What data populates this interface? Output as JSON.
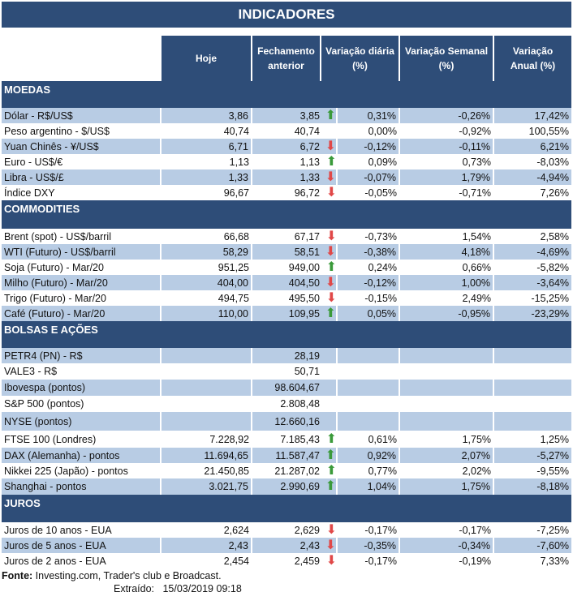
{
  "title": "INDICADORES",
  "headers": {
    "hoje": "Hoje",
    "fech_1": "Fechamento",
    "fech_2": "anterior",
    "diaria_1": "Variação diária",
    "diaria_2": "(%)",
    "semanal_1": "Variação Semanal",
    "semanal_2": "(%)",
    "anual_1": "Variação",
    "anual_2": "Anual (%)"
  },
  "colors": {
    "header_bg": "#2e4d78",
    "stripe": "#b8cce4",
    "up": "#3a9a3a",
    "down": "#e04848"
  },
  "sections": [
    {
      "name": "MOEDAS",
      "rows": [
        {
          "label": "Dólar - R$/US$",
          "hoje": "3,86",
          "fech": "3,85",
          "trend": "up",
          "diaria": "0,31%",
          "semanal": "-0,26%",
          "anual": "17,42%"
        },
        {
          "label": "Peso argentino - $/US$",
          "hoje": "40,74",
          "fech": "40,74",
          "trend": "",
          "diaria": "0,00%",
          "semanal": "-0,92%",
          "anual": "100,55%"
        },
        {
          "label": "Yuan Chinês - ¥/US$",
          "hoje": "6,71",
          "fech": "6,72",
          "trend": "down",
          "diaria": "-0,12%",
          "semanal": "-0,11%",
          "anual": "6,21%"
        },
        {
          "label": "Euro - US$/€",
          "hoje": "1,13",
          "fech": "1,13",
          "trend": "up",
          "diaria": "0,09%",
          "semanal": "0,73%",
          "anual": "-8,03%"
        },
        {
          "label": "Libra - US$/£",
          "hoje": "1,33",
          "fech": "1,33",
          "trend": "down",
          "diaria": "-0,07%",
          "semanal": "1,79%",
          "anual": "-4,94%"
        },
        {
          "label": "Índice DXY",
          "hoje": "96,67",
          "fech": "96,72",
          "trend": "down",
          "diaria": "-0,05%",
          "semanal": "-0,71%",
          "anual": "7,26%"
        }
      ]
    },
    {
      "name": "COMMODITIES",
      "rows": [
        {
          "label": "Brent (spot) - US$/barril",
          "hoje": "66,68",
          "fech": "67,17",
          "trend": "down",
          "diaria": "-0,73%",
          "semanal": "1,54%",
          "anual": "2,58%"
        },
        {
          "label": "WTI (Futuro) - US$/barril",
          "hoje": "58,29",
          "fech": "58,51",
          "trend": "down",
          "diaria": "-0,38%",
          "semanal": "4,18%",
          "anual": "-4,69%"
        },
        {
          "label": "Soja (Futuro) - Mar/20",
          "hoje": "951,25",
          "fech": "949,00",
          "trend": "up",
          "diaria": "0,24%",
          "semanal": "0,66%",
          "anual": "-5,82%"
        },
        {
          "label": "Milho (Futuro) - Mar/20",
          "hoje": "404,00",
          "fech": "404,50",
          "trend": "down",
          "diaria": "-0,12%",
          "semanal": "1,00%",
          "anual": "-3,64%"
        },
        {
          "label": "Trigo (Futuro) - Mar/20",
          "hoje": "494,75",
          "fech": "495,50",
          "trend": "down",
          "diaria": "-0,15%",
          "semanal": "2,49%",
          "anual": "-15,25%"
        },
        {
          "label": "Café (Futuro) - Mar/20",
          "hoje": "110,00",
          "fech": "109,95",
          "trend": "up",
          "diaria": "0,05%",
          "semanal": "-0,95%",
          "anual": "-23,29%"
        }
      ]
    },
    {
      "name": "BOLSAS E AÇÕES",
      "rows": [
        {
          "label": "PETR4 (PN) - R$",
          "hoje": "",
          "fech": "28,19",
          "trend": "",
          "diaria": "",
          "semanal": "",
          "anual": ""
        },
        {
          "label": "VALE3 - R$",
          "hoje": "",
          "fech": "50,71",
          "trend": "",
          "diaria": "",
          "semanal": "",
          "anual": ""
        },
        {
          "label": "Ibovespa (pontos)",
          "hoje": "",
          "fech": "98.604,67",
          "trend": "",
          "diaria": "",
          "semanal": "",
          "anual": ""
        },
        {
          "label": "S&P 500 (pontos)",
          "hoje": "",
          "fech": "2.808,48",
          "trend": "",
          "diaria": "",
          "semanal": "",
          "anual": ""
        },
        {
          "label": "NYSE (pontos)",
          "hoje": "",
          "fech": "12.660,16",
          "trend": "",
          "diaria": "",
          "semanal": "",
          "anual": ""
        },
        {
          "label": "FTSE 100 (Londres)",
          "hoje": "7.228,92",
          "fech": "7.185,43",
          "trend": "up",
          "diaria": "0,61%",
          "semanal": "1,75%",
          "anual": "1,25%"
        },
        {
          "label": "DAX (Alemanha) - pontos",
          "hoje": "11.694,65",
          "fech": "11.587,47",
          "trend": "up",
          "diaria": "0,92%",
          "semanal": "2,07%",
          "anual": "-5,27%"
        },
        {
          "label": "Nikkei 225 (Japão) - pontos",
          "hoje": "21.450,85",
          "fech": "21.287,02",
          "trend": "up",
          "diaria": "0,77%",
          "semanal": "2,02%",
          "anual": "-9,55%"
        },
        {
          "label": "Shanghai - pontos",
          "hoje": "3.021,75",
          "fech": "2.990,69",
          "trend": "up",
          "diaria": "1,04%",
          "semanal": "1,75%",
          "anual": "-8,18%"
        }
      ]
    },
    {
      "name": "JUROS",
      "rows": [
        {
          "label": "Juros de 10 anos - EUA",
          "hoje": "2,624",
          "fech": "2,629",
          "trend": "down",
          "diaria": "-0,17%",
          "semanal": "-0,17%",
          "anual": "-7,25%"
        },
        {
          "label": "Juros de 5 anos - EUA",
          "hoje": "2,43",
          "fech": "2,43",
          "trend": "down",
          "diaria": "-0,35%",
          "semanal": "-0,34%",
          "anual": "-7,60%"
        },
        {
          "label": "Juros de 2 anos - EUA",
          "hoje": "2,454",
          "fech": "2,459",
          "trend": "down",
          "diaria": "-0,17%",
          "semanal": "-0,19%",
          "anual": "7,33%"
        }
      ]
    }
  ],
  "footer": {
    "fonte_label": "Fonte:",
    "fonte": " Investing.com, Trader's club e Broadcast.",
    "extraido_label": "Extraído:",
    "extraido": "15/03/2019 09:18"
  }
}
